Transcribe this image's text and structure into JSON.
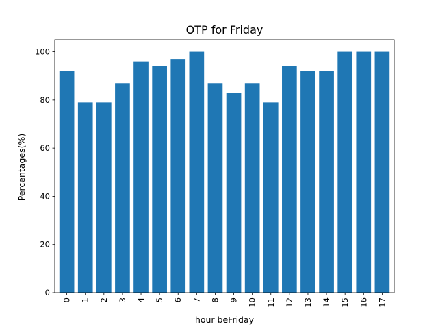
{
  "chart_data": {
    "type": "bar",
    "title": "OTP for Friday",
    "xlabel": "hour beFriday",
    "ylabel": "Percentages(%)",
    "categories": [
      "0",
      "1",
      "2",
      "3",
      "4",
      "5",
      "6",
      "7",
      "8",
      "9",
      "10",
      "11",
      "12",
      "13",
      "14",
      "15",
      "16",
      "17"
    ],
    "values": [
      92,
      79,
      79,
      87,
      96,
      94,
      97,
      100,
      87,
      83,
      87,
      79,
      94,
      92,
      92,
      100,
      100,
      100
    ],
    "ylim": [
      0,
      105
    ],
    "yticks": [
      0,
      20,
      40,
      60,
      80,
      100
    ],
    "x_tick_rotation": "vertical",
    "bar_color": "#1f77b4",
    "grid": false,
    "legend": "none"
  }
}
